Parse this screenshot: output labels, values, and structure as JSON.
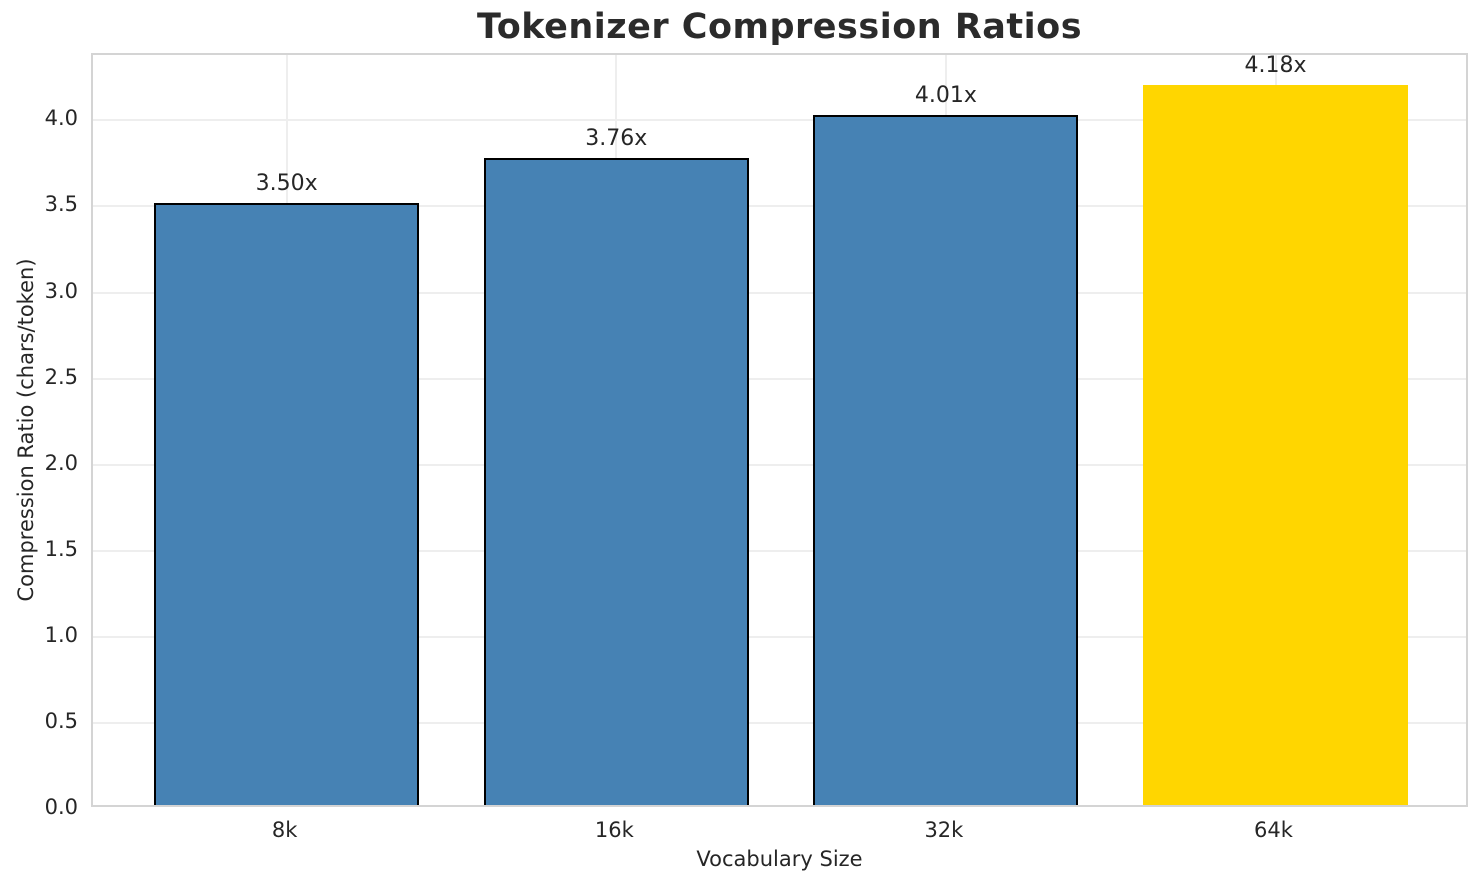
{
  "chart_data": {
    "type": "bar",
    "title": "Tokenizer Compression Ratios",
    "xlabel": "Vocabulary Size",
    "ylabel": "Compression Ratio (chars/token)",
    "categories": [
      "8k",
      "16k",
      "32k",
      "64k"
    ],
    "values": [
      3.5,
      3.76,
      4.01,
      4.18
    ],
    "bar_labels": [
      "3.50x",
      "3.76x",
      "4.01x",
      "4.18x"
    ],
    "bar_colors": [
      "#4682B4",
      "#4682B4",
      "#4682B4",
      "#FFD600"
    ],
    "bar_edge_colors": [
      "#000000",
      "#000000",
      "#000000",
      "none"
    ],
    "ylim": [
      0,
      4.38
    ],
    "yticks": [
      0.0,
      0.5,
      1.0,
      1.5,
      2.0,
      2.5,
      3.0,
      3.5,
      4.0
    ],
    "ytick_labels": [
      "0.0",
      "0.5",
      "1.0",
      "1.5",
      "2.0",
      "2.5",
      "3.0",
      "3.5",
      "4.0"
    ],
    "grid": true,
    "legend": "none",
    "colors": {
      "bar_default": "#4682B4",
      "bar_highlight": "#FFD600",
      "grid": "#eeeeee",
      "spine": "#d4d4d4",
      "text": "#262626"
    }
  }
}
